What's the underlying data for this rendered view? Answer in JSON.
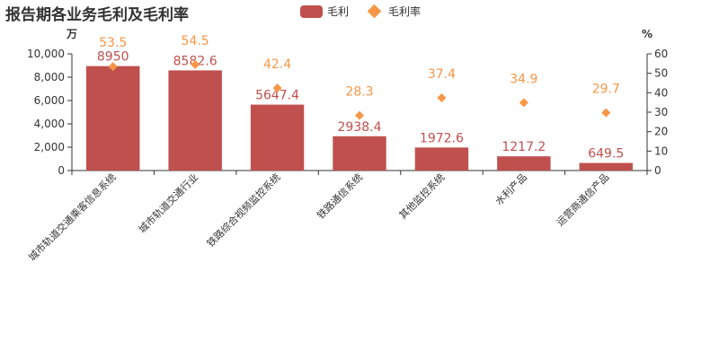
{
  "chart_data": {
    "type": "bar",
    "title": "报告期各业务毛利及毛利率",
    "categories": [
      "城市轨道交通乘客信息系统",
      "城市轨道交通行业",
      "铁路综合视频监控系统",
      "铁路通信系统",
      "其他监控系统",
      "水利产品",
      "运营商通信产品"
    ],
    "series": [
      {
        "name": "毛利",
        "type": "bar",
        "axis": "left",
        "color": "#c0504d",
        "values": [
          8950,
          8582.6,
          5647.4,
          2938.4,
          1972.6,
          1217.2,
          649.5
        ],
        "labels": [
          "8950",
          "8582.6",
          "5647.4",
          "2938.4",
          "1972.6",
          "1217.2",
          "649.5"
        ]
      },
      {
        "name": "毛利率",
        "type": "scatter",
        "marker": "diamond",
        "axis": "right",
        "color": "#f79646",
        "values": [
          53.5,
          54.5,
          42.4,
          28.3,
          37.4,
          34.9,
          29.7
        ],
        "labels": [
          "53.5",
          "54.5",
          "42.4",
          "28.3",
          "37.4",
          "34.9",
          "29.7"
        ]
      }
    ],
    "y_left": {
      "unit": "万",
      "ylim": [
        0,
        10000
      ],
      "ticks": [
        0,
        2000,
        4000,
        6000,
        8000,
        10000
      ],
      "tick_labels": [
        "0",
        "2,000",
        "4,000",
        "6,000",
        "8,000",
        "10,000"
      ]
    },
    "y_right": {
      "unit": "%",
      "ylim": [
        0,
        60
      ],
      "ticks": [
        0,
        10,
        20,
        30,
        40,
        50,
        60
      ],
      "tick_labels": [
        "0",
        "10",
        "20",
        "30",
        "40",
        "50",
        "60"
      ]
    },
    "legend_position": "top-center",
    "grid": false
  }
}
